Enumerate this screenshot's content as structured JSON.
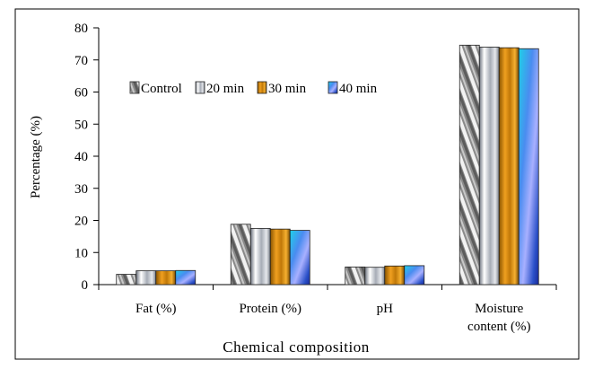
{
  "chart_data": {
    "type": "bar",
    "title": "",
    "xlabel": "Chemical composition",
    "ylabel": "Percentage (%)",
    "ylim": [
      0,
      80
    ],
    "yticks": [
      0,
      10,
      20,
      30,
      40,
      50,
      60,
      70,
      80
    ],
    "grid": false,
    "legend_position": "top-left",
    "categories": [
      [
        "Fat (%)"
      ],
      [
        "Protein  (%)"
      ],
      [
        "pH"
      ],
      [
        "Moisture",
        "content  (%)"
      ]
    ],
    "series": [
      {
        "name": "Control",
        "values": [
          3.2,
          18.8,
          5.5,
          74.6
        ],
        "color": "#9a9a9a",
        "pattern": "diag"
      },
      {
        "name": "20 min",
        "values": [
          4.3,
          17.5,
          5.4,
          74.0
        ],
        "color": "#b8bcc4",
        "pattern": "silver"
      },
      {
        "name": "30 min",
        "values": [
          4.3,
          17.3,
          5.8,
          73.8
        ],
        "color": "#d08a10",
        "pattern": "orange"
      },
      {
        "name": "40 min",
        "values": [
          4.4,
          16.9,
          5.9,
          73.5
        ],
        "color": "#3a6fd8",
        "pattern": "blue"
      }
    ]
  }
}
